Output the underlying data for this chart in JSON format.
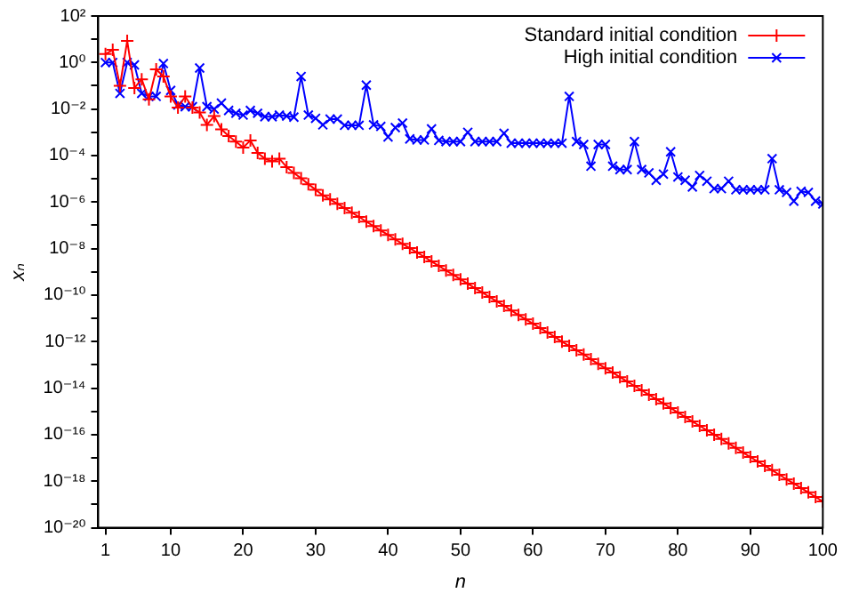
{
  "chart_data": {
    "type": "line",
    "xlabel": "n",
    "ylabel": "xₙ",
    "log": "y",
    "grid": false,
    "legend": "top right",
    "line_style": "solid",
    "xlim": [
      0,
      100
    ],
    "xticks": [
      1,
      10,
      20,
      30,
      40,
      50,
      60,
      70,
      80,
      90,
      100
    ],
    "ylim": [
      1e-20,
      100
    ],
    "yticks": [
      {
        "value": 1e-20,
        "label": "10⁻²⁰"
      },
      {
        "value": 1e-19,
        "label": null
      },
      {
        "value": 1e-18,
        "label": "10⁻¹⁸"
      },
      {
        "value": 1e-17,
        "label": null
      },
      {
        "value": 1e-16,
        "label": "10⁻¹⁶"
      },
      {
        "value": 1e-15,
        "label": null
      },
      {
        "value": 1e-14,
        "label": "10⁻¹⁴"
      },
      {
        "value": 1e-13,
        "label": null
      },
      {
        "value": 1e-12,
        "label": "10⁻¹²"
      },
      {
        "value": 1e-11,
        "label": null
      },
      {
        "value": 1e-10,
        "label": "10⁻¹⁰"
      },
      {
        "value": 1e-09,
        "label": null
      },
      {
        "value": 1e-08,
        "label": "10⁻⁸"
      },
      {
        "value": 1e-07,
        "label": null
      },
      {
        "value": 1e-06,
        "label": "10⁻⁶"
      },
      {
        "value": 1e-05,
        "label": null
      },
      {
        "value": 0.0001,
        "label": "10⁻⁴"
      },
      {
        "value": 0.001,
        "label": null
      },
      {
        "value": 0.01,
        "label": "10⁻²"
      },
      {
        "value": 0.1,
        "label": null
      },
      {
        "value": 1,
        "label": "10⁰"
      },
      {
        "value": 10,
        "label": null
      },
      {
        "value": 100,
        "label": "10²"
      }
    ],
    "x": [
      1,
      2,
      3,
      4,
      5,
      6,
      7,
      8,
      9,
      10,
      11,
      12,
      13,
      14,
      15,
      16,
      17,
      18,
      19,
      20,
      21,
      22,
      23,
      24,
      25,
      26,
      27,
      28,
      29,
      30,
      31,
      32,
      33,
      34,
      35,
      36,
      37,
      38,
      39,
      40,
      41,
      42,
      43,
      44,
      45,
      46,
      47,
      48,
      49,
      50,
      51,
      52,
      53,
      54,
      55,
      56,
      57,
      58,
      59,
      60,
      61,
      62,
      63,
      64,
      65,
      66,
      67,
      68,
      69,
      70,
      71,
      72,
      73,
      74,
      75,
      76,
      77,
      78,
      79,
      80,
      81,
      82,
      83,
      84,
      85,
      86,
      87,
      88,
      89,
      90,
      91,
      92,
      93,
      94,
      95,
      96,
      97,
      98,
      99,
      100
    ],
    "series": [
      {
        "name": "Standard initial condition",
        "color": "#ff0000",
        "marker": "cross",
        "values": [
          2.3,
          3.5,
          0.1,
          8.5,
          0.081,
          0.19,
          0.026,
          0.51,
          0.25,
          0.035,
          0.0115,
          0.035,
          0.0115,
          0.0072,
          0.0021,
          0.005,
          0.00135,
          0.00069,
          0.0004,
          0.00022,
          0.00045,
          0.00013,
          7.4e-05,
          5.6e-05,
          7.4e-05,
          3.2e-05,
          1.8e-05,
          1.05e-05,
          5.9e-06,
          3.4e-06,
          1.95e-06,
          1.3e-06,
          8.5e-07,
          5.5e-07,
          3.5e-07,
          2.3e-07,
          1.45e-07,
          9.3e-08,
          6e-08,
          3.9e-08,
          2.5e-08,
          1.6e-08,
          1.05e-08,
          6.8e-09,
          4.4e-09,
          2.8e-09,
          1.8e-09,
          1.15e-09,
          7.4e-10,
          4.8e-10,
          3.1e-10,
          2e-10,
          1.3e-10,
          8.3e-11,
          5.4e-11,
          3.5e-11,
          2.2e-11,
          1.4e-11,
          9.1e-12,
          5.9e-12,
          3.8e-12,
          2.5e-12,
          1.6e-12,
          1e-12,
          6.6e-13,
          4.3e-13,
          2.8e-13,
          1.75e-13,
          1.1e-13,
          7.2e-14,
          4.7e-14,
          3e-14,
          1.95e-14,
          1.26e-14,
          8.1e-15,
          5.2e-15,
          3.4e-15,
          2.2e-15,
          1.4e-15,
          8.9e-16,
          5.8e-16,
          3.7e-16,
          2.4e-16,
          1.55e-16,
          1e-16,
          6.5e-17,
          4.2e-17,
          2.7e-17,
          1.7e-17,
          1.1e-17,
          7.1e-18,
          4.6e-18,
          3e-18,
          1.9e-18,
          1.2e-18,
          7.9e-19,
          5.1e-19,
          3.3e-19,
          2.1e-19,
          1.35e-19
        ]
      },
      {
        "name": "High initial condition",
        "color": "#0000ff",
        "marker": "cross",
        "values": [
          1.0,
          1.0,
          0.047,
          1.0,
          0.79,
          0.047,
          0.035,
          0.035,
          0.91,
          0.063,
          0.015,
          0.0126,
          0.0126,
          0.58,
          0.0126,
          0.01,
          0.018,
          0.0087,
          0.0066,
          0.0055,
          0.0087,
          0.0066,
          0.0047,
          0.0047,
          0.0055,
          0.005,
          0.0045,
          0.25,
          0.0055,
          0.004,
          0.0021,
          0.0037,
          0.0037,
          0.002,
          0.002,
          0.002,
          0.107,
          0.0021,
          0.0018,
          0.00063,
          0.0016,
          0.0025,
          0.00052,
          0.00047,
          0.00047,
          0.0014,
          0.00045,
          0.0004,
          0.0004,
          0.0004,
          0.001,
          0.0004,
          0.0004,
          0.0004,
          0.0004,
          0.00091,
          0.00034,
          0.00034,
          0.00034,
          0.00034,
          0.00034,
          0.00034,
          0.00034,
          0.00034,
          0.035,
          0.0004,
          0.0003,
          3.5e-05,
          0.0003,
          0.0003,
          3.5e-05,
          2.5e-05,
          2.5e-05,
          0.0004,
          2.5e-05,
          1.8e-05,
          8.7e-06,
          1.6e-05,
          0.000145,
          1.2e-05,
          8.7e-06,
          4.5e-06,
          1.4e-05,
          7.9e-06,
          3.8e-06,
          3.8e-06,
          7.9e-06,
          3.4e-06,
          3.4e-06,
          3.4e-06,
          3.4e-06,
          3.4e-06,
          7.4e-05,
          3.4e-06,
          2.6e-06,
          1.1e-06,
          2.9e-06,
          2.6e-06,
          1.1e-06,
          8.3e-07
        ]
      }
    ]
  }
}
